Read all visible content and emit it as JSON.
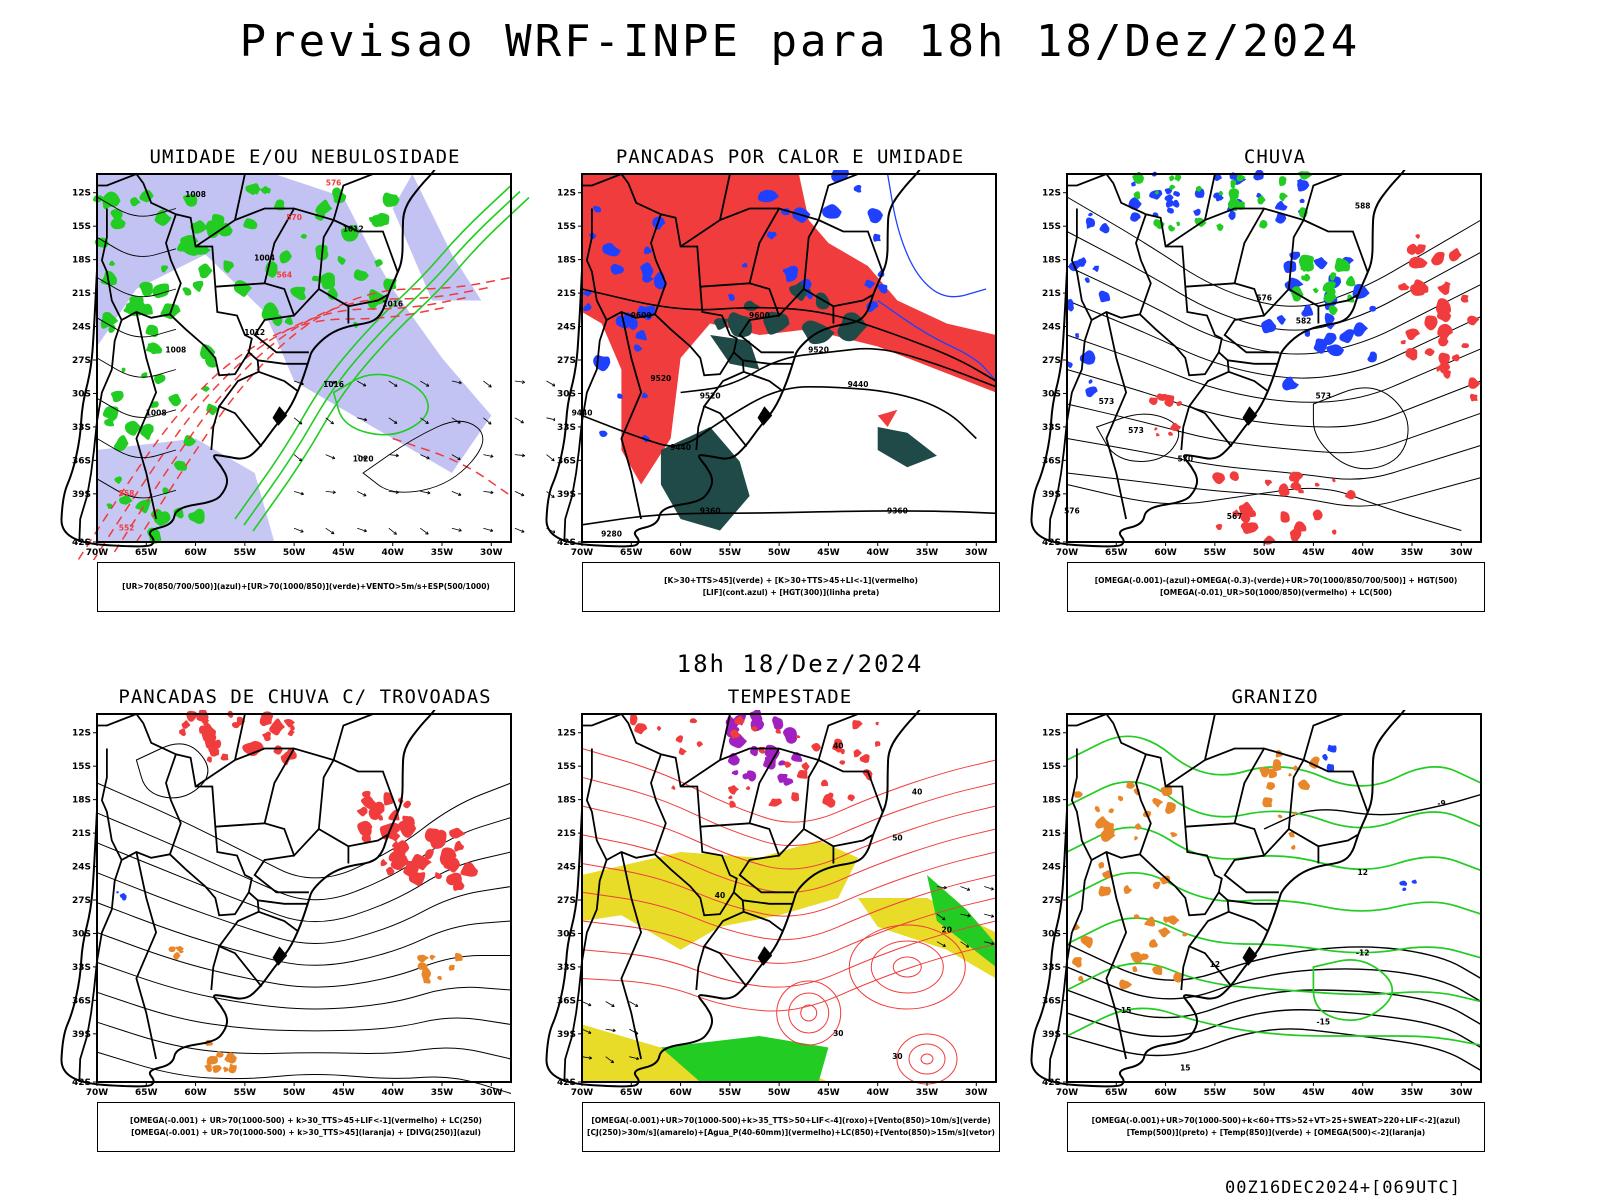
{
  "title": "Previsao WRF-INPE  para 18h 18/Dez/2024",
  "mid_title": "18h 18/Dez/2024",
  "footer": "00Z16DEC2024+[069UTC]",
  "axes": {
    "lat_labels": [
      "12S",
      "15S",
      "18S",
      "21S",
      "24S",
      "27S",
      "30S",
      "33S",
      "36S",
      "39S",
      "42S"
    ],
    "lon_labels": [
      "70W",
      "65W",
      "60W",
      "55W",
      "50W",
      "45W",
      "40W",
      "35W",
      "30W"
    ]
  },
  "colors": {
    "red": "#f03c3c",
    "green": "#22cc22",
    "blue": "#2040ff",
    "lavender": "#b4b4f0",
    "darkteal": "#1f4a48",
    "yellow": "#e8dc28",
    "orange": "#e8862a",
    "purple": "#a020c0"
  },
  "panels": [
    {
      "title": "UMIDADE E/OU NEBULOSIDADE",
      "legend": [
        "[UR>70(850/700/500)](azul)+[UR>70(1000/850)](verde)+VENTO>5m/s+ESP(500/1000)"
      ],
      "contour_labels": [
        "1008",
        "1008",
        "1012",
        "1016",
        "1016",
        "1020",
        "1004",
        "1012",
        "1008",
        "576",
        "570",
        "564",
        "558",
        "552"
      ]
    },
    {
      "title": "PANCADAS POR CALOR E UMIDADE",
      "legend": [
        "[K>30+TTS>45](verde) + [K>30+TTS>45+LI<-1](vermelho)",
        "[LIF](cont.azul) + [HGT(300)](linha preta)"
      ],
      "contour_labels": [
        "9600",
        "9520",
        "9600",
        "9520",
        "9440",
        "9520",
        "9440",
        "9360",
        "9360",
        "9280",
        "9440"
      ]
    },
    {
      "title": "CHUVA",
      "legend": [
        "[OMEGA(-0.001)-(azul)+OMEGA(-0.3)-(verde)+UR>70(1000/850/700/500)] + HGT(500)",
        "[OMEGA(-0.01)_UR>50(1000/850)(vermelho) + LC(500)"
      ],
      "contour_labels": [
        "588",
        "582",
        "576",
        "573",
        "573",
        "570",
        "567",
        "576",
        "573"
      ]
    },
    {
      "title": "PANCADAS DE CHUVA C/ TROVOADAS",
      "legend": [
        "[OMEGA(-0.001) + UR>70(1000-500) + k>30_TTS>45+LIF<-1](vermelho) + LC(250)",
        "[OMEGA(-0.001) + UR>70(1000-500) + k>30_TTS>45](laranja) + [DIVG(250)](azul)"
      ],
      "contour_labels": []
    },
    {
      "title": "TEMPESTADE",
      "legend": [
        "[OMEGA(-0.001)+UR>70(1000-500)+k>35_TTS>50+LIF<-4](roxo)+[Vento(850)>10m/s](verde)",
        "[CJ(250)>30m/s](amarelo)+[Agua_P(40-60mm)](vermelho)+LC(850)+[Vento(850)>15m/s](vetor)"
      ],
      "contour_labels": [
        "40",
        "40",
        "50",
        "40",
        "30",
        "20",
        "30"
      ]
    },
    {
      "title": "GRANIZO",
      "legend": [
        "[OMEGA(-0.001)+UR>70(1000-500)+k<60+TTS>52+VT>25+SWEAT>220+LIF<-2](azul)",
        "[Temp(500)](preto) + [Temp(850)](verde) + [OMEGA(500)<-2](laranja)"
      ],
      "contour_labels": [
        "-9",
        "-12",
        "-15",
        "12",
        "15",
        "15",
        "12"
      ]
    }
  ]
}
